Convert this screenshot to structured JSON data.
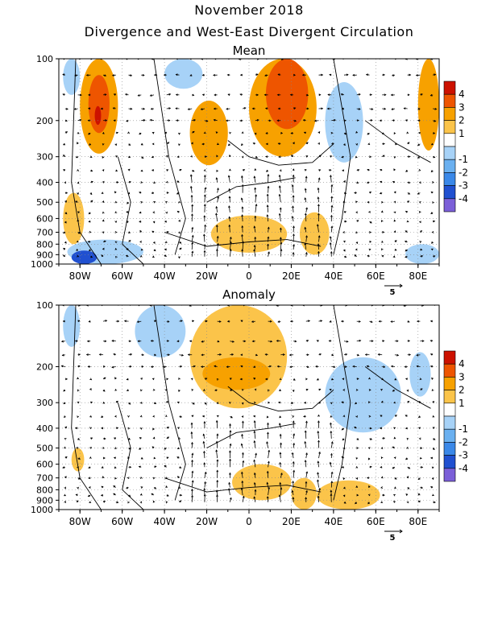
{
  "header": {
    "title": "November 2018",
    "subtitle": "Divergence and West-East Divergent Circulation"
  },
  "colorbar": {
    "labels": [
      "4",
      "3",
      "2",
      "1",
      "-1",
      "-2",
      "-3",
      "-4"
    ],
    "colors": [
      "#cc1100",
      "#ee5500",
      "#f7a100",
      "#fbc44a",
      "#ffffff",
      "#a7d2f7",
      "#6ab0f0",
      "#3a88e8",
      "#2050d0",
      "#7b5fd8"
    ]
  },
  "chart_data": [
    {
      "type": "heatmap",
      "title": "Mean",
      "x_ticks": [
        "80W",
        "60W",
        "40W",
        "20W",
        "0",
        "20E",
        "40E",
        "60E",
        "80E"
      ],
      "x_tick_values": [
        -80,
        -60,
        -40,
        -20,
        0,
        20,
        40,
        60,
        80
      ],
      "xlim": [
        -90,
        90
      ],
      "y_ticks": [
        "100",
        "200",
        "300",
        "400",
        "500",
        "600",
        "700",
        "800",
        "900",
        "1000"
      ],
      "y_tick_values": [
        100,
        200,
        300,
        400,
        500,
        600,
        700,
        800,
        900,
        1000
      ],
      "ylim": [
        1000,
        100
      ],
      "y_scale": "log",
      "vector_reference": "5",
      "regions": [
        {
          "x": [
            -80,
            -62
          ],
          "p": [
            100,
            290
          ],
          "value": 2
        },
        {
          "x": [
            -76,
            -66
          ],
          "p": [
            120,
            230
          ],
          "value": 3
        },
        {
          "x": [
            -73,
            -70
          ],
          "p": [
            170,
            210
          ],
          "value": 4
        },
        {
          "x": [
            -28,
            -10
          ],
          "p": [
            160,
            330
          ],
          "value": 2
        },
        {
          "x": [
            0,
            32
          ],
          "p": [
            100,
            300
          ],
          "value": 2
        },
        {
          "x": [
            8,
            28
          ],
          "p": [
            100,
            220
          ],
          "value": 3
        },
        {
          "x": [
            80,
            90
          ],
          "p": [
            100,
            280
          ],
          "value": 2
        },
        {
          "x": [
            -88,
            -80
          ],
          "p": [
            100,
            150
          ],
          "value": -1
        },
        {
          "x": [
            -40,
            -22
          ],
          "p": [
            100,
            140
          ],
          "value": -1
        },
        {
          "x": [
            36,
            54
          ],
          "p": [
            130,
            320
          ],
          "value": -1
        },
        {
          "x": [
            -88,
            -78
          ],
          "p": [
            450,
            800
          ],
          "value": 1
        },
        {
          "x": [
            -18,
            18
          ],
          "p": [
            580,
            880
          ],
          "value": 1
        },
        {
          "x": [
            24,
            38
          ],
          "p": [
            560,
            900
          ],
          "value": 1
        },
        {
          "x": [
            -86,
            -50
          ],
          "p": [
            760,
            1000
          ],
          "value": -1
        },
        {
          "x": [
            -84,
            -72
          ],
          "p": [
            860,
            1000
          ],
          "value": -3
        },
        {
          "x": [
            74,
            90
          ],
          "p": [
            800,
            1000
          ],
          "value": -1
        }
      ]
    },
    {
      "type": "heatmap",
      "title": "Anomaly",
      "x_ticks": [
        "80W",
        "60W",
        "40W",
        "20W",
        "0",
        "20E",
        "40E",
        "60E",
        "80E"
      ],
      "x_tick_values": [
        -80,
        -60,
        -40,
        -20,
        0,
        20,
        40,
        60,
        80
      ],
      "xlim": [
        -90,
        90
      ],
      "y_ticks": [
        "100",
        "200",
        "300",
        "400",
        "500",
        "600",
        "700",
        "800",
        "900",
        "1000"
      ],
      "y_tick_values": [
        100,
        200,
        300,
        400,
        500,
        600,
        700,
        800,
        900,
        1000
      ],
      "ylim": [
        1000,
        100
      ],
      "y_scale": "log",
      "vector_reference": "5",
      "regions": [
        {
          "x": [
            -28,
            18
          ],
          "p": [
            100,
            320
          ],
          "value": 1
        },
        {
          "x": [
            -22,
            10
          ],
          "p": [
            180,
            260
          ],
          "value": 2
        },
        {
          "x": [
            -88,
            -80
          ],
          "p": [
            100,
            160
          ],
          "value": -1
        },
        {
          "x": [
            -54,
            -30
          ],
          "p": [
            100,
            180
          ],
          "value": -1
        },
        {
          "x": [
            36,
            72
          ],
          "p": [
            180,
            420
          ],
          "value": -1
        },
        {
          "x": [
            76,
            86
          ],
          "p": [
            170,
            280
          ],
          "value": -1
        },
        {
          "x": [
            -84,
            -78
          ],
          "p": [
            500,
            650
          ],
          "value": 1
        },
        {
          "x": [
            -8,
            20
          ],
          "p": [
            600,
            900
          ],
          "value": 1
        },
        {
          "x": [
            20,
            32
          ],
          "p": [
            700,
            1000
          ],
          "value": 1
        },
        {
          "x": [
            32,
            62
          ],
          "p": [
            720,
            1000
          ],
          "value": 1
        }
      ]
    }
  ]
}
